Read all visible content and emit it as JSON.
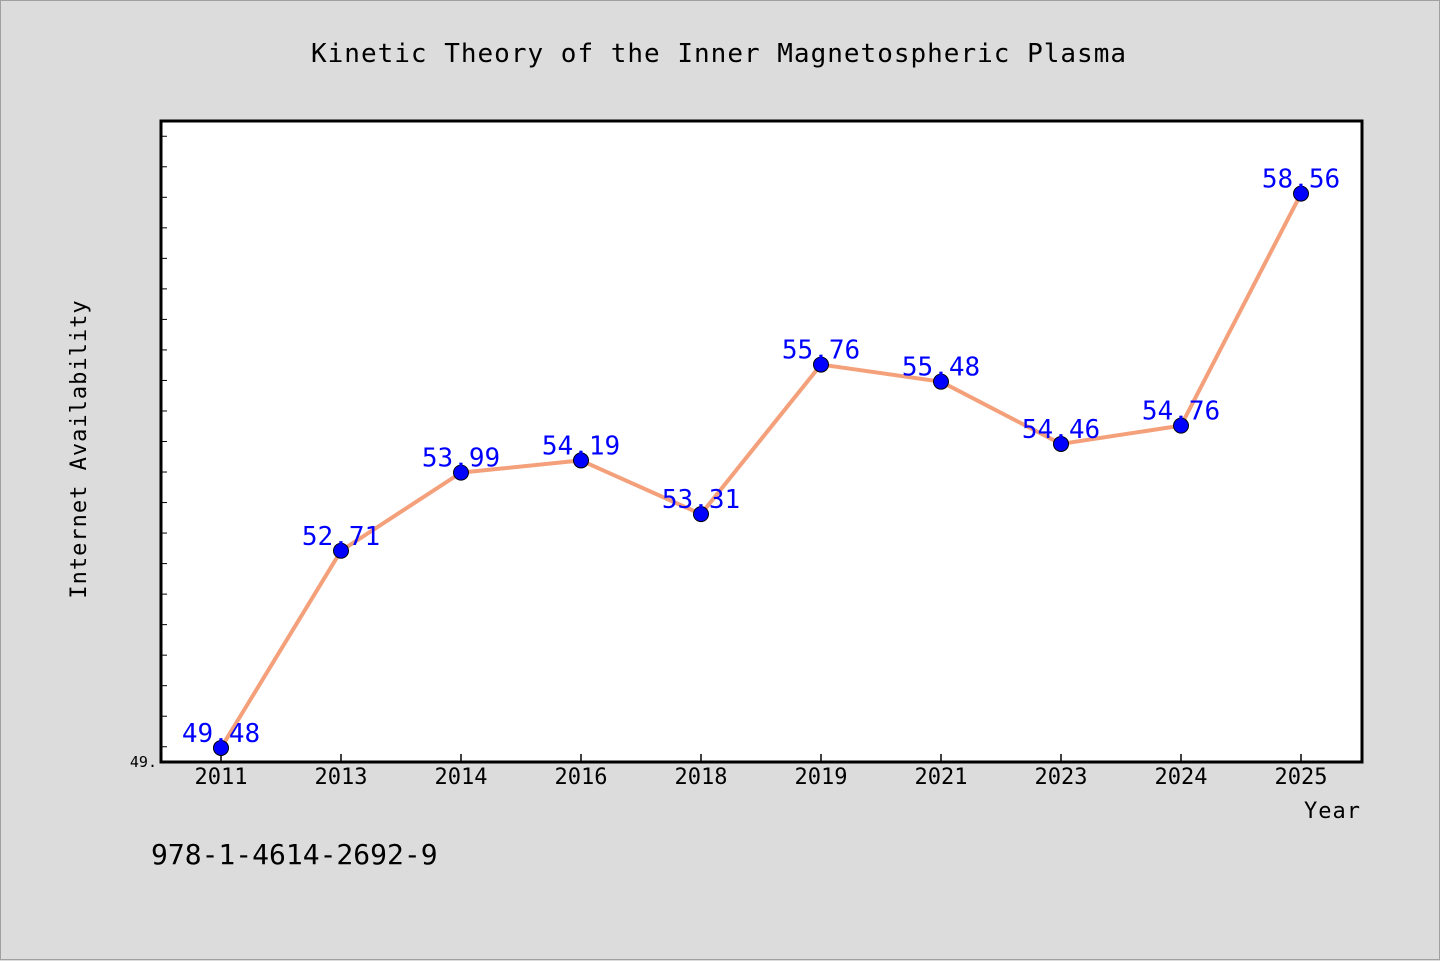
{
  "chart_data": {
    "type": "line",
    "title": "Kinetic Theory of the Inner Magnetospheric Plasma",
    "xlabel": "Year",
    "ylabel": "Internet Availability",
    "categories": [
      "2011",
      "2013",
      "2014",
      "2016",
      "2018",
      "2019",
      "2021",
      "2023",
      "2024",
      "2025"
    ],
    "series": [
      {
        "values": [
          49.48,
          52.71,
          53.99,
          54.19,
          53.31,
          55.76,
          55.48,
          54.46,
          54.76,
          58.56
        ],
        "data_labels": [
          "49.48",
          "52.71",
          "53.99",
          "54.19",
          "53.31",
          "55.76",
          "55.48",
          "54.46",
          "54.76",
          "58.56"
        ],
        "line_color": "#f4a07a",
        "marker_color": "#0000ff"
      }
    ],
    "ylim": [
      49.25,
      59.75
    ],
    "ytick_labels": [
      "49."
    ],
    "grid": false
  },
  "footer": {
    "isbn": "978-1-4614-2692-9"
  },
  "colors": {
    "background": "#dcdcdc",
    "plot_background": "#ffffff",
    "line": "#f4a07a",
    "marker": "#0000ff",
    "label": "#0000ff"
  }
}
